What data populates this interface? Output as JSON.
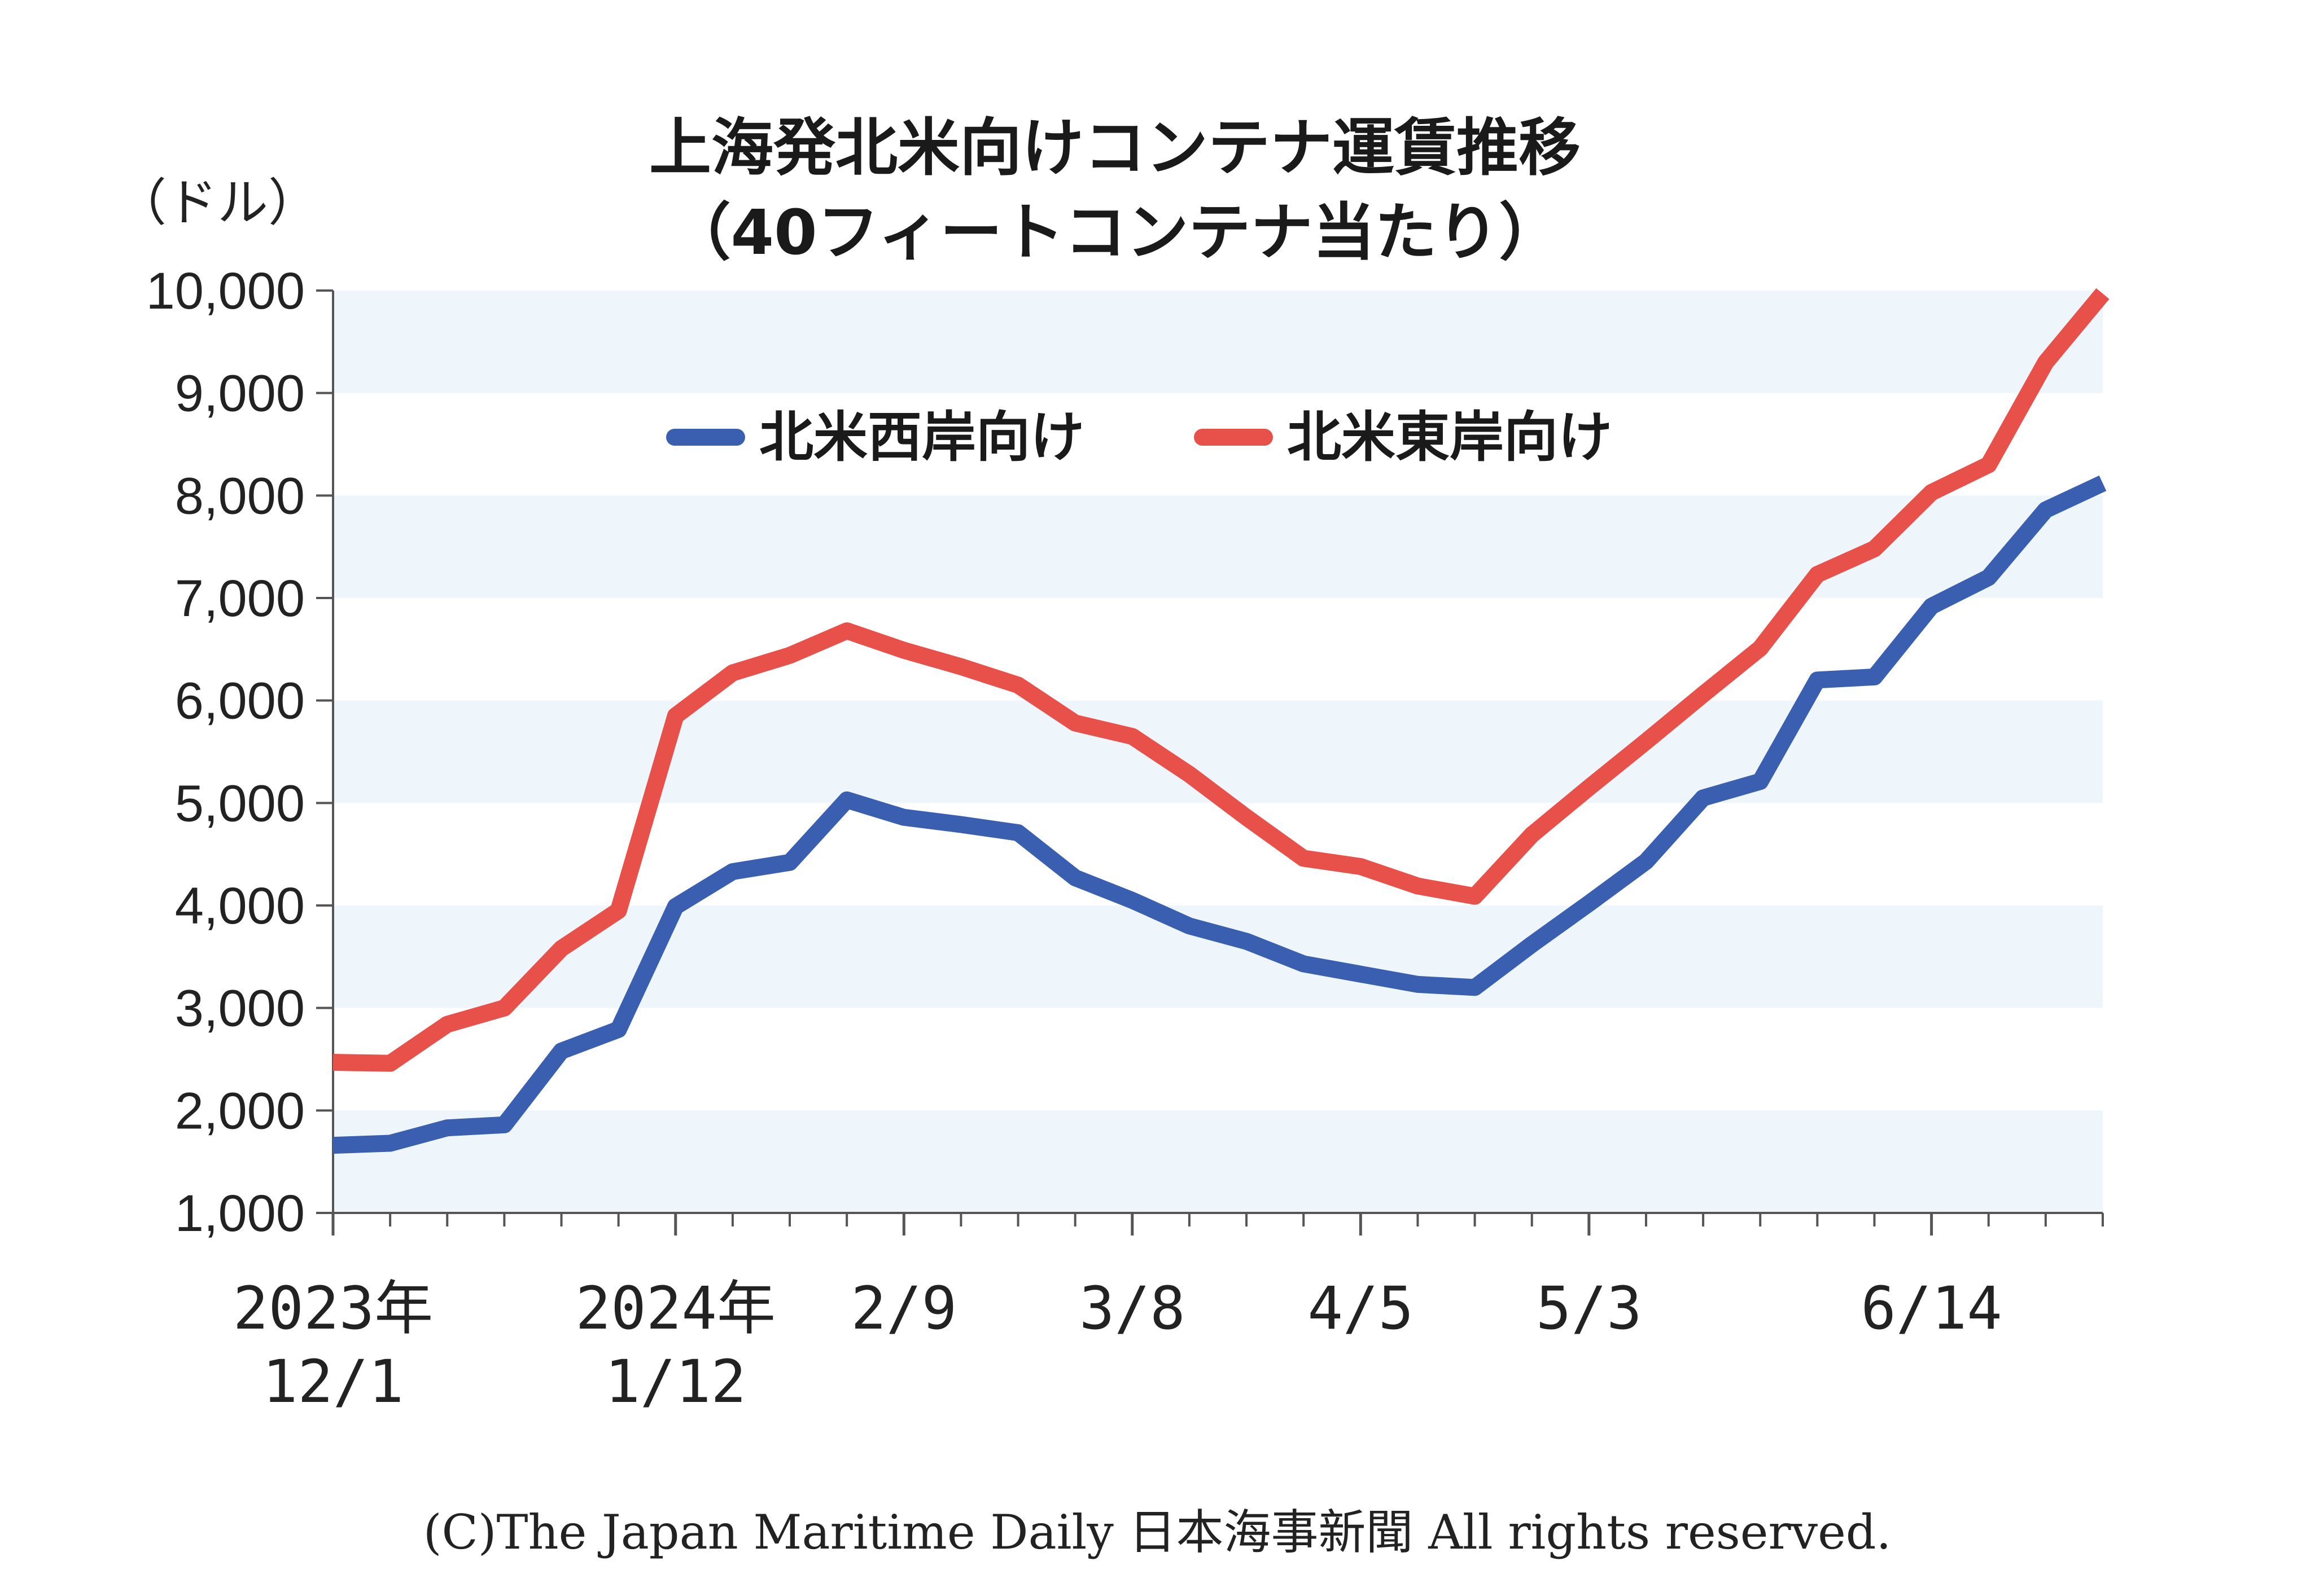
{
  "colors": {
    "west": "#3a5fb0",
    "east": "#e8504a",
    "band": "#eef6fc",
    "axis": "#555555"
  },
  "chart_data": {
    "type": "line",
    "title": [
      "上海発北米向けコンテナ運賃推移",
      "（40フィートコンテナ当たり）"
    ],
    "ylabel": "（ドル）",
    "xlabel": "",
    "ylim": [
      1000,
      10000
    ],
    "yticks": [
      "1,000",
      "2,000",
      "3,000",
      "4,000",
      "5,000",
      "6,000",
      "7,000",
      "8,000",
      "9,000",
      "10,000"
    ],
    "ytick_values": [
      1000,
      2000,
      3000,
      4000,
      5000,
      6000,
      7000,
      8000,
      9000,
      10000
    ],
    "x_dates": [
      "2023-12-01",
      "2023-12-08",
      "2023-12-15",
      "2023-12-22",
      "2023-12-29",
      "2024-01-05",
      "2024-01-12",
      "2024-01-19",
      "2024-01-26",
      "2024-02-02",
      "2024-02-09",
      "2024-02-16",
      "2024-02-23",
      "2024-03-01",
      "2024-03-08",
      "2024-03-15",
      "2024-03-22",
      "2024-03-29",
      "2024-04-05",
      "2024-04-12",
      "2024-04-19",
      "2024-04-26",
      "2024-05-03",
      "2024-05-10",
      "2024-05-17",
      "2024-05-24",
      "2024-05-31",
      "2024-06-07",
      "2024-06-14",
      "2024-06-21",
      "2024-06-28",
      "2024-07-05"
    ],
    "xtick_labels": [
      {
        "date": "2023-12-01",
        "lines": [
          "2023年",
          "12/1"
        ]
      },
      {
        "date": "2024-01-12",
        "lines": [
          "2024年",
          "1/12"
        ]
      },
      {
        "date": "2024-02-09",
        "lines": [
          "2/9"
        ]
      },
      {
        "date": "2024-03-08",
        "lines": [
          "3/8"
        ]
      },
      {
        "date": "2024-04-05",
        "lines": [
          "4/5"
        ]
      },
      {
        "date": "2024-05-03",
        "lines": [
          "5/3"
        ]
      },
      {
        "date": "2024-06-14",
        "lines": [
          "6/14"
        ]
      }
    ],
    "legend": "top-center",
    "series": [
      {
        "name": "北米西岸向け",
        "color": "#3a5fb0",
        "values": [
          1660,
          1680,
          1830,
          1860,
          2580,
          2790,
          3990,
          4330,
          4420,
          5030,
          4860,
          4790,
          4710,
          4270,
          4050,
          3800,
          3650,
          3430,
          3330,
          3230,
          3200,
          3620,
          4020,
          4430,
          5050,
          5210,
          6200,
          6230,
          6920,
          7200,
          7860,
          8120
        ]
      },
      {
        "name": "北米東岸向け",
        "color": "#e8504a",
        "values": [
          2470,
          2460,
          2840,
          3000,
          3580,
          3950,
          5850,
          6270,
          6440,
          6680,
          6490,
          6330,
          6150,
          5780,
          5650,
          5280,
          4860,
          4460,
          4380,
          4190,
          4090,
          4690,
          5150,
          5600,
          6060,
          6510,
          7230,
          7480,
          8030,
          8300,
          9300,
          9970
        ]
      }
    ]
  },
  "copyright": "(C)The Japan Maritime Daily 日本海事新聞 All rights reserved."
}
